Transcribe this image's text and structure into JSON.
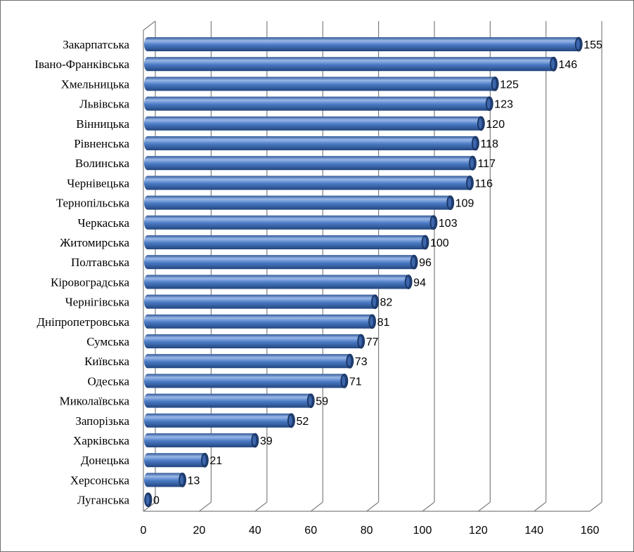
{
  "chart_data": {
    "type": "bar",
    "orientation": "horizontal",
    "style": "3d-cylinder",
    "categories": [
      "Закарпатська",
      "Івано-Франківська",
      "Хмельницька",
      "Львівська",
      "Вінницька",
      "Рівненська",
      "Волинська",
      "Чернівецька",
      "Тернопільська",
      "Черкаська",
      "Житомирська",
      "Полтавська",
      "Кіровоградська",
      "Чернігівська",
      "Дніпропетровська",
      "Сумська",
      "Київська",
      "Одеська",
      "Миколаївська",
      "Запорізька",
      "Харківська",
      "Донецька",
      "Херсонська",
      "Луганська"
    ],
    "values": [
      155,
      146,
      125,
      123,
      120,
      118,
      117,
      116,
      109,
      103,
      100,
      96,
      94,
      82,
      81,
      77,
      73,
      71,
      59,
      52,
      39,
      21,
      13,
      0
    ],
    "xlim": [
      0,
      160
    ],
    "xticks": [
      0,
      20,
      40,
      60,
      80,
      100,
      120,
      140,
      160
    ],
    "grid": "vertical",
    "data_labels": true,
    "colors": {
      "bar_fill": "#4a7ac4",
      "bar_light": "#9ab8e8",
      "bar_dark": "#2a4f8c",
      "bar_cap": "#1f3d70",
      "grid": "#7f7f7f",
      "axis": "#7f7f7f"
    }
  }
}
